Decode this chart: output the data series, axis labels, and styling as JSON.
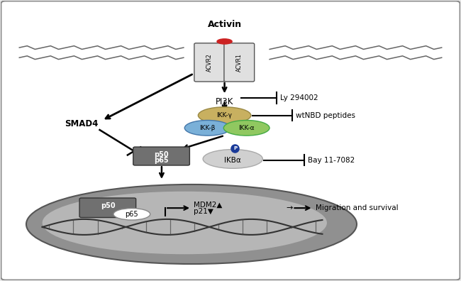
{
  "background_color": "#e8e8e8",
  "panel_bg": "#ffffff",
  "receptor1_label": "ACVR2",
  "receptor2_label": "ACVR1",
  "activin_label": "Activin",
  "pi3k_label": "PI3K",
  "ly_label": "Ly 294002",
  "smad4_label": "SMAD4",
  "ikk_gamma_label": "IKK-γ",
  "ikk_beta_label": "IKK-β",
  "ikk_alpha_label": "IKK-α",
  "wtNBD_label": "wtNBD peptides",
  "p50_label": "p50",
  "p65_label": "p65",
  "ikba_label": "IKBα",
  "bay_label": "Bay 11-7082",
  "mdm2_label": "MDM2▲",
  "p21_label": "p21▼",
  "migration_label": "→ Migration and survival",
  "ikk_gamma_color": "#c8b060",
  "ikk_beta_color": "#7ab0d8",
  "ikk_alpha_color": "#90c860",
  "p50_box_color": "#707070",
  "ikba_circle_color": "#d0d0d0",
  "phospho_color": "#1a3a99",
  "nucleus_outer_color": "#909090",
  "nucleus_inner_color": "#c0c0c0",
  "membrane_color": "#666666",
  "receptor_color": "#e0e0e0",
  "activin_dot_color": "#cc2222"
}
